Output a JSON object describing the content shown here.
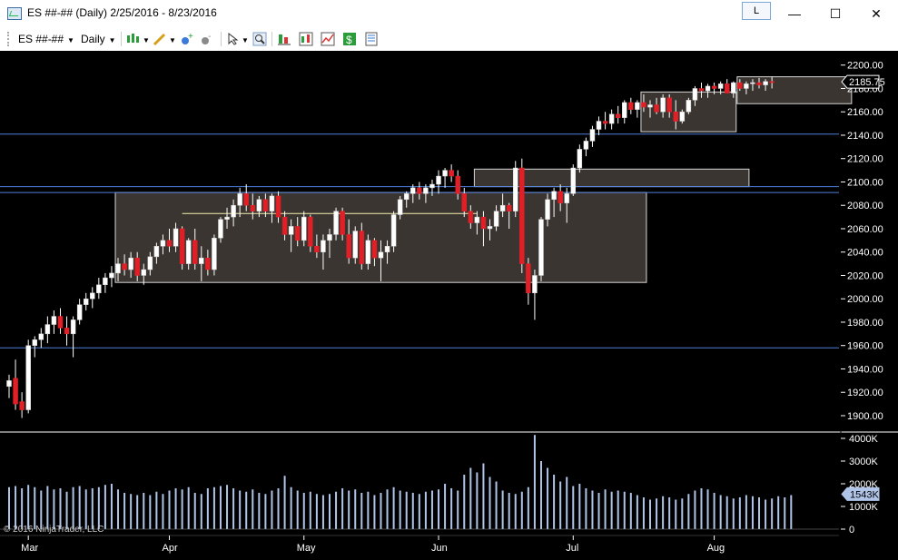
{
  "window": {
    "title": "ES ##-## (Daily)  2/25/2016 - 8/23/2016",
    "link_button": "L",
    "minimize_glyph": "—",
    "maximize_glyph": "☐",
    "close_glyph": "✕"
  },
  "toolbar": {
    "instrument": "ES ##-##",
    "interval": "Daily",
    "icons": [
      "bar-style-icon",
      "drawing-tool-icon",
      "add-indicator-icon",
      "strategy-icon",
      "cursor-icon",
      "zoom-icon",
      "data-series-icon",
      "indicators-icon",
      "strategies-icon",
      "money-icon",
      "properties-icon"
    ]
  },
  "colors": {
    "background": "#000000",
    "up_candle": "#ffffff",
    "down_candle": "#e01f26",
    "wick": "#ffffff",
    "box_fill": "#3a3530",
    "box_stroke": "#d8d8d8",
    "hline": "#4f7fd8",
    "volume_bar": "#b0c4e8",
    "axis_text": "#ffffff",
    "last_price_bg": "#ffffff",
    "yellow_line": "#f3f0b0"
  },
  "chart_data": {
    "type": "candlestick",
    "price_axis": {
      "ticks": [
        1900,
        1920,
        1940,
        1960,
        1980,
        2000,
        2020,
        2040,
        2060,
        2080,
        2100,
        2120,
        2140,
        2160,
        2180,
        2200
      ],
      "tick_labels": [
        "1900.00",
        "1920.00",
        "1940.00",
        "1960.00",
        "1980.00",
        "2000.00",
        "2020.00",
        "2040.00",
        "2060.00",
        "2080.00",
        "2100.00",
        "2120.00",
        "2140.00",
        "2160.00",
        "2180.00",
        "2200.00"
      ],
      "range": [
        1886,
        2206
      ],
      "last_price_label": "2185.75"
    },
    "volume_axis": {
      "ticks": [
        0,
        1000,
        2000,
        3000,
        4000
      ],
      "tick_labels": [
        "0",
        "1000K",
        "2000K",
        "3000K",
        "4000K"
      ],
      "range": [
        0,
        4200
      ],
      "last_volume_label": "1543K"
    },
    "x_labels": [
      "Mar",
      "Apr",
      "May",
      "Jun",
      "Jul",
      "Aug"
    ],
    "x_label_index": [
      3,
      25,
      46,
      67,
      88,
      110
    ],
    "horizontal_lines": [
      2096,
      2091,
      2141,
      1958
    ],
    "boxes": [
      {
        "i0": 17,
        "i1": 99,
        "top": 2091,
        "bottom": 2014
      },
      {
        "i0": 73,
        "i1": 115,
        "top": 2111,
        "bottom": 2096
      },
      {
        "i0": 99,
        "i1": 113,
        "top": 2177,
        "bottom": 2143
      },
      {
        "i0": 114,
        "i1": 131,
        "top": 2190,
        "bottom": 2167
      }
    ],
    "yellow_segment": {
      "i0": 27,
      "i1": 73,
      "value": 2073
    },
    "candles": [
      [
        1925,
        1935,
        1915,
        1930
      ],
      [
        1932,
        1948,
        1905,
        1910
      ],
      [
        1912,
        1920,
        1898,
        1905
      ],
      [
        1905,
        1965,
        1902,
        1960
      ],
      [
        1960,
        1968,
        1950,
        1965
      ],
      [
        1965,
        1975,
        1958,
        1970
      ],
      [
        1970,
        1985,
        1962,
        1978
      ],
      [
        1978,
        1990,
        1970,
        1985
      ],
      [
        1985,
        1992,
        1970,
        1975
      ],
      [
        1975,
        1985,
        1960,
        1970
      ],
      [
        1970,
        1985,
        1950,
        1982
      ],
      [
        1982,
        2000,
        1978,
        1995
      ],
      [
        1995,
        2005,
        1990,
        2000
      ],
      [
        2000,
        2010,
        1992,
        2005
      ],
      [
        2005,
        2018,
        2000,
        2012
      ],
      [
        2012,
        2022,
        2005,
        2018
      ],
      [
        2018,
        2028,
        2010,
        2022
      ],
      [
        2022,
        2035,
        2015,
        2030
      ],
      [
        2030,
        2038,
        2020,
        2025
      ],
      [
        2025,
        2040,
        2018,
        2035
      ],
      [
        2035,
        2040,
        2015,
        2020
      ],
      [
        2020,
        2030,
        2012,
        2025
      ],
      [
        2025,
        2040,
        2020,
        2036
      ],
      [
        2036,
        2048,
        2030,
        2045
      ],
      [
        2045,
        2055,
        2038,
        2050
      ],
      [
        2050,
        2060,
        2040,
        2045
      ],
      [
        2045,
        2065,
        2040,
        2060
      ],
      [
        2060,
        2062,
        2025,
        2030
      ],
      [
        2030,
        2052,
        2025,
        2050
      ],
      [
        2050,
        2060,
        2025,
        2030
      ],
      [
        2030,
        2045,
        2015,
        2035
      ],
      [
        2035,
        2042,
        2020,
        2025
      ],
      [
        2025,
        2055,
        2020,
        2052
      ],
      [
        2052,
        2070,
        2048,
        2068
      ],
      [
        2068,
        2078,
        2060,
        2070
      ],
      [
        2070,
        2085,
        2062,
        2080
      ],
      [
        2080,
        2095,
        2070,
        2090
      ],
      [
        2090,
        2098,
        2075,
        2080
      ],
      [
        2080,
        2090,
        2068,
        2075
      ],
      [
        2075,
        2088,
        2070,
        2085
      ],
      [
        2085,
        2090,
        2070,
        2075
      ],
      [
        2075,
        2090,
        2065,
        2088
      ],
      [
        2088,
        2092,
        2065,
        2070
      ],
      [
        2070,
        2075,
        2050,
        2055
      ],
      [
        2055,
        2068,
        2040,
        2062
      ],
      [
        2062,
        2070,
        2045,
        2050
      ],
      [
        2050,
        2075,
        2045,
        2070
      ],
      [
        2070,
        2072,
        2040,
        2045
      ],
      [
        2045,
        2055,
        2035,
        2040
      ],
      [
        2040,
        2055,
        2025,
        2050
      ],
      [
        2050,
        2060,
        2035,
        2055
      ],
      [
        2055,
        2078,
        2050,
        2075
      ],
      [
        2075,
        2078,
        2050,
        2055
      ],
      [
        2055,
        2068,
        2030,
        2035
      ],
      [
        2035,
        2062,
        2030,
        2058
      ],
      [
        2058,
        2065,
        2025,
        2030
      ],
      [
        2030,
        2055,
        2025,
        2050
      ],
      [
        2050,
        2052,
        2028,
        2035
      ],
      [
        2035,
        2050,
        2015,
        2040
      ],
      [
        2040,
        2050,
        2030,
        2045
      ],
      [
        2045,
        2075,
        2040,
        2072
      ],
      [
        2072,
        2088,
        2068,
        2085
      ],
      [
        2085,
        2092,
        2078,
        2090
      ],
      [
        2090,
        2098,
        2082,
        2095
      ],
      [
        2095,
        2100,
        2085,
        2090
      ],
      [
        2090,
        2098,
        2082,
        2095
      ],
      [
        2095,
        2102,
        2088,
        2098
      ],
      [
        2098,
        2110,
        2090,
        2105
      ],
      [
        2105,
        2112,
        2095,
        2110
      ],
      [
        2110,
        2115,
        2100,
        2105
      ],
      [
        2105,
        2110,
        2085,
        2090
      ],
      [
        2090,
        2095,
        2070,
        2075
      ],
      [
        2075,
        2080,
        2060,
        2065
      ],
      [
        2065,
        2075,
        2055,
        2070
      ],
      [
        2070,
        2075,
        2045,
        2060
      ],
      [
        2060,
        2068,
        2050,
        2062
      ],
      [
        2062,
        2080,
        2058,
        2075
      ],
      [
        2075,
        2090,
        2070,
        2080
      ],
      [
        2080,
        2082,
        2060,
        2075
      ],
      [
        2075,
        2118,
        2070,
        2112
      ],
      [
        2112,
        2120,
        2022,
        2030
      ],
      [
        2030,
        2035,
        1995,
        2005
      ],
      [
        2005,
        2025,
        1982,
        2020
      ],
      [
        2020,
        2070,
        2015,
        2068
      ],
      [
        2068,
        2090,
        2062,
        2085
      ],
      [
        2085,
        2095,
        2070,
        2092
      ],
      [
        2092,
        2098,
        2075,
        2082
      ],
      [
        2082,
        2095,
        2065,
        2090
      ],
      [
        2090,
        2115,
        2088,
        2112
      ],
      [
        2112,
        2132,
        2108,
        2128
      ],
      [
        2128,
        2138,
        2122,
        2135
      ],
      [
        2135,
        2148,
        2130,
        2145
      ],
      [
        2145,
        2156,
        2140,
        2152
      ],
      [
        2152,
        2160,
        2145,
        2150
      ],
      [
        2150,
        2162,
        2145,
        2158
      ],
      [
        2158,
        2165,
        2150,
        2155
      ],
      [
        2155,
        2170,
        2150,
        2168
      ],
      [
        2168,
        2172,
        2158,
        2162
      ],
      [
        2162,
        2170,
        2155,
        2168
      ],
      [
        2168,
        2175,
        2160,
        2164
      ],
      [
        2164,
        2170,
        2155,
        2166
      ],
      [
        2166,
        2172,
        2158,
        2160
      ],
      [
        2160,
        2175,
        2155,
        2172
      ],
      [
        2172,
        2175,
        2155,
        2160
      ],
      [
        2160,
        2170,
        2145,
        2152
      ],
      [
        2152,
        2162,
        2150,
        2160
      ],
      [
        2160,
        2172,
        2158,
        2170
      ],
      [
        2170,
        2182,
        2165,
        2180
      ],
      [
        2180,
        2185,
        2172,
        2178
      ],
      [
        2178,
        2184,
        2172,
        2182
      ],
      [
        2182,
        2185,
        2175,
        2180
      ],
      [
        2180,
        2186,
        2175,
        2184
      ],
      [
        2184,
        2188,
        2178,
        2176
      ],
      [
        2176,
        2186,
        2172,
        2185
      ],
      [
        2185,
        2188,
        2178,
        2180
      ],
      [
        2180,
        2186,
        2175,
        2184
      ],
      [
        2184,
        2188,
        2178,
        2185
      ],
      [
        2185,
        2189,
        2180,
        2183
      ],
      [
        2183,
        2188,
        2178,
        2186
      ],
      [
        2186,
        2190,
        2180,
        2185
      ]
    ],
    "volume": [
      1850,
      1900,
      1800,
      1950,
      1850,
      1700,
      1900,
      1750,
      1800,
      1650,
      1850,
      1900,
      1750,
      1800,
      1850,
      1950,
      2000,
      1750,
      1600,
      1550,
      1500,
      1600,
      1500,
      1650,
      1550,
      1700,
      1800,
      1750,
      1850,
      1600,
      1550,
      1800,
      1850,
      1900,
      1950,
      1800,
      1700,
      1650,
      1750,
      1600,
      1550,
      1700,
      1800,
      2350,
      1850,
      1700,
      1600,
      1650,
      1550,
      1500,
      1550,
      1650,
      1800,
      1700,
      1750,
      1600,
      1650,
      1500,
      1600,
      1750,
      1850,
      1700,
      1650,
      1600,
      1550,
      1650,
      1700,
      1750,
      2000,
      1800,
      1700,
      2400,
      2700,
      2500,
      2900,
      2300,
      2100,
      1700,
      1600,
      1550,
      1650,
      1850,
      4150,
      3000,
      2700,
      2400,
      2100,
      2300,
      1900,
      2000,
      1800,
      1700,
      1600,
      1750,
      1650,
      1700,
      1650,
      1600,
      1500,
      1400,
      1300,
      1350,
      1450,
      1400,
      1300,
      1350,
      1550,
      1700,
      1800,
      1750,
      1600,
      1500,
      1450,
      1350,
      1400,
      1500,
      1450,
      1400,
      1300,
      1350,
      1450,
      1400,
      1500
    ]
  },
  "copyright": "© 2016 NinjaTrader, LLC"
}
